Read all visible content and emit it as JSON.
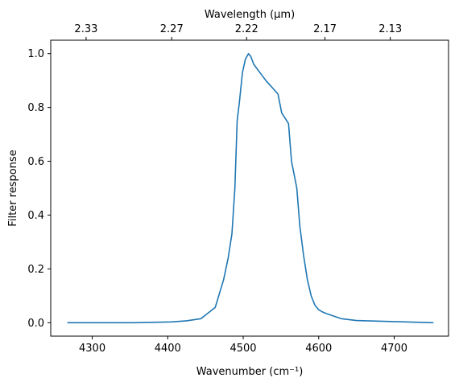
{
  "chart_data": {
    "type": "line",
    "title": "",
    "xlabel": "Wavenumber (cm⁻¹)",
    "ylabel": "Filter response",
    "top_xlabel": "Wavelength (μm)",
    "xlim": [
      4245,
      4772
    ],
    "ylim": [
      -0.05,
      1.05
    ],
    "x_ticks": [
      4300,
      4400,
      4500,
      4600,
      4700
    ],
    "x_tick_labels": [
      "4300",
      "4400",
      "4500",
      "4600",
      "4700"
    ],
    "y_ticks": [
      0.0,
      0.2,
      0.4,
      0.6,
      0.8,
      1.0
    ],
    "y_tick_labels": [
      "0.0",
      "0.2",
      "0.4",
      "0.6",
      "0.8",
      "1.0"
    ],
    "top_ticks": [
      2.33,
      2.27,
      2.22,
      2.17,
      2.13
    ],
    "top_tick_labels": [
      "2.33",
      "2.27",
      "2.22",
      "2.17",
      "2.13"
    ],
    "grid": false,
    "series": [
      {
        "name": "",
        "color": "#1f77b4",
        "x": [
          4267,
          4355,
          4405,
          4425,
          4444,
          4463,
          4474,
          4480,
          4485,
          4489,
          4492,
          4495,
          4499,
          4503,
          4507,
          4510,
          4514,
          4530,
          4546,
          4551,
          4560,
          4564,
          4571,
          4575,
          4580,
          4585,
          4590,
          4595,
          4600,
          4605,
          4610,
          4630,
          4650,
          4700,
          4752
        ],
        "y": [
          0.0,
          0.0,
          0.003,
          0.007,
          0.015,
          0.057,
          0.16,
          0.24,
          0.33,
          0.5,
          0.75,
          0.82,
          0.93,
          0.98,
          1.0,
          0.99,
          0.96,
          0.9,
          0.85,
          0.78,
          0.74,
          0.6,
          0.5,
          0.36,
          0.25,
          0.16,
          0.1,
          0.065,
          0.048,
          0.04,
          0.034,
          0.015,
          0.008,
          0.004,
          0.0
        ]
      }
    ]
  }
}
